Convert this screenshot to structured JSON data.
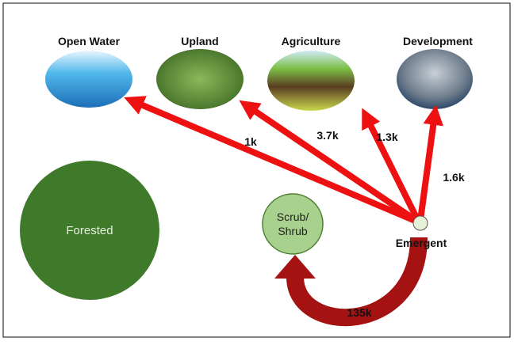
{
  "nodes": [
    {
      "label": "Open Water"
    },
    {
      "label": "Upland"
    },
    {
      "label": "Agriculture"
    },
    {
      "label": "Development"
    },
    {
      "label": "Forested"
    },
    {
      "label": [
        "Scrub/",
        "Shrub"
      ]
    },
    {
      "label": "Emergent"
    }
  ],
  "flows": [
    {
      "label": "1k"
    },
    {
      "label": "3.7k"
    },
    {
      "label": "1.3k"
    },
    {
      "label": "1.6k"
    },
    {
      "label": "135k"
    }
  ]
}
